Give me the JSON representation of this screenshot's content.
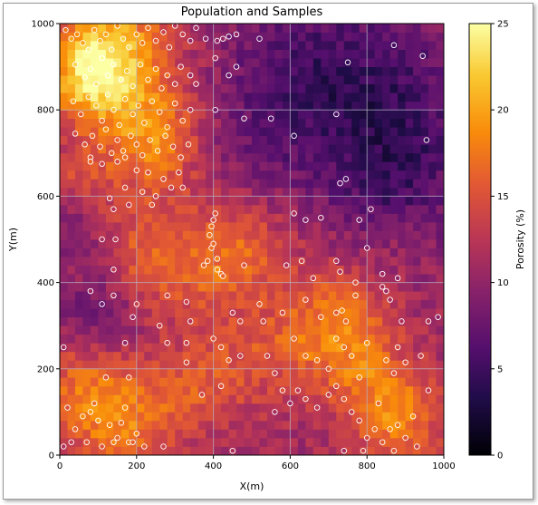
{
  "chart_data": {
    "type": "heatmap",
    "title": "Population and Samples",
    "xlabel": "X(m)",
    "ylabel": "Y(m)",
    "xlim": [
      0,
      1000
    ],
    "ylim": [
      0,
      1000
    ],
    "x_ticks": [
      0,
      200,
      400,
      600,
      800,
      1000
    ],
    "y_ticks": [
      0,
      200,
      400,
      600,
      800,
      1000
    ],
    "grid": true,
    "colormap": "inferno",
    "colorbar": {
      "label": "Porosity (%)",
      "range": [
        0,
        25
      ],
      "ticks": [
        0,
        5,
        10,
        15,
        20,
        25
      ]
    },
    "samples": [
      [
        15,
        985
      ],
      [
        30,
        965
      ],
      [
        45,
        975
      ],
      [
        60,
        955
      ],
      [
        75,
        940
      ],
      [
        90,
        985
      ],
      [
        105,
        960
      ],
      [
        120,
        975
      ],
      [
        135,
        940
      ],
      [
        150,
        995
      ],
      [
        165,
        965
      ],
      [
        180,
        945
      ],
      [
        200,
        975
      ],
      [
        215,
        955
      ],
      [
        230,
        990
      ],
      [
        250,
        960
      ],
      [
        270,
        980
      ],
      [
        285,
        945
      ],
      [
        300,
        995
      ],
      [
        320,
        975
      ],
      [
        340,
        960
      ],
      [
        355,
        990
      ],
      [
        380,
        965
      ],
      [
        410,
        960
      ],
      [
        425,
        965
      ],
      [
        440,
        970
      ],
      [
        460,
        975
      ],
      [
        520,
        965
      ],
      [
        40,
        905
      ],
      [
        65,
        875
      ],
      [
        80,
        895
      ],
      [
        95,
        860
      ],
      [
        110,
        920
      ],
      [
        125,
        880
      ],
      [
        140,
        905
      ],
      [
        160,
        870
      ],
      [
        175,
        890
      ],
      [
        190,
        855
      ],
      [
        210,
        905
      ],
      [
        230,
        870
      ],
      [
        250,
        895
      ],
      [
        265,
        850
      ],
      [
        280,
        880
      ],
      [
        300,
        860
      ],
      [
        315,
        900
      ],
      [
        340,
        880
      ],
      [
        355,
        860
      ],
      [
        405,
        920
      ],
      [
        440,
        880
      ],
      [
        460,
        900
      ],
      [
        35,
        820
      ],
      [
        55,
        790
      ],
      [
        75,
        830
      ],
      [
        95,
        810
      ],
      [
        110,
        775
      ],
      [
        125,
        835
      ],
      [
        140,
        800
      ],
      [
        155,
        765
      ],
      [
        170,
        825
      ],
      [
        190,
        790
      ],
      [
        205,
        810
      ],
      [
        220,
        770
      ],
      [
        240,
        820
      ],
      [
        260,
        795
      ],
      [
        280,
        760
      ],
      [
        300,
        815
      ],
      [
        320,
        775
      ],
      [
        340,
        800
      ],
      [
        405,
        800
      ],
      [
        480,
        780
      ],
      [
        550,
        780
      ],
      [
        720,
        790
      ],
      [
        40,
        745
      ],
      [
        65,
        720
      ],
      [
        85,
        740
      ],
      [
        105,
        715
      ],
      [
        120,
        755
      ],
      [
        135,
        700
      ],
      [
        150,
        730
      ],
      [
        165,
        705
      ],
      [
        185,
        740
      ],
      [
        200,
        720
      ],
      [
        215,
        695
      ],
      [
        235,
        730
      ],
      [
        255,
        705
      ],
      [
        275,
        740
      ],
      [
        295,
        715
      ],
      [
        315,
        690
      ],
      [
        335,
        720
      ],
      [
        80,
        690
      ],
      [
        80,
        680
      ],
      [
        110,
        675
      ],
      [
        150,
        680
      ],
      [
        170,
        690
      ],
      [
        200,
        660
      ],
      [
        230,
        655
      ],
      [
        170,
        620
      ],
      [
        215,
        610
      ],
      [
        250,
        600
      ],
      [
        270,
        640
      ],
      [
        290,
        620
      ],
      [
        310,
        655
      ],
      [
        320,
        620
      ],
      [
        130,
        595
      ],
      [
        140,
        570
      ],
      [
        180,
        580
      ],
      [
        240,
        580
      ],
      [
        390,
        510
      ],
      [
        395,
        530
      ],
      [
        400,
        545
      ],
      [
        405,
        560
      ],
      [
        730,
        630
      ],
      [
        745,
        640
      ],
      [
        610,
        740
      ],
      [
        750,
        910
      ],
      [
        870,
        950
      ],
      [
        945,
        925
      ],
      [
        955,
        730
      ],
      [
        610,
        560
      ],
      [
        640,
        545
      ],
      [
        680,
        550
      ],
      [
        780,
        545
      ],
      [
        810,
        570
      ],
      [
        590,
        440
      ],
      [
        630,
        450
      ],
      [
        660,
        410
      ],
      [
        720,
        450
      ],
      [
        730,
        425
      ],
      [
        770,
        400
      ],
      [
        800,
        480
      ],
      [
        840,
        420
      ],
      [
        880,
        410
      ],
      [
        110,
        500
      ],
      [
        145,
        500
      ],
      [
        140,
        430
      ],
      [
        375,
        440
      ],
      [
        385,
        450
      ],
      [
        395,
        480
      ],
      [
        400,
        490
      ],
      [
        410,
        455
      ],
      [
        410,
        430
      ],
      [
        420,
        420
      ],
      [
        425,
        415
      ],
      [
        480,
        440
      ],
      [
        80,
        380
      ],
      [
        110,
        350
      ],
      [
        140,
        370
      ],
      [
        200,
        350
      ],
      [
        190,
        320
      ],
      [
        280,
        370
      ],
      [
        330,
        355
      ],
      [
        340,
        310
      ],
      [
        450,
        330
      ],
      [
        470,
        310
      ],
      [
        520,
        350
      ],
      [
        530,
        310
      ],
      [
        580,
        330
      ],
      [
        640,
        360
      ],
      [
        680,
        320
      ],
      [
        720,
        330
      ],
      [
        735,
        335
      ],
      [
        745,
        310
      ],
      [
        770,
        370
      ],
      [
        840,
        390
      ],
      [
        850,
        380
      ],
      [
        860,
        360
      ],
      [
        890,
        310
      ],
      [
        960,
        310
      ],
      [
        985,
        320
      ],
      [
        10,
        250
      ],
      [
        180,
        180
      ],
      [
        170,
        260
      ],
      [
        260,
        300
      ],
      [
        280,
        260
      ],
      [
        330,
        260
      ],
      [
        400,
        270
      ],
      [
        420,
        250
      ],
      [
        440,
        220
      ],
      [
        470,
        230
      ],
      [
        540,
        230
      ],
      [
        560,
        190
      ],
      [
        580,
        150
      ],
      [
        610,
        270
      ],
      [
        640,
        230
      ],
      [
        670,
        220
      ],
      [
        700,
        200
      ],
      [
        720,
        270
      ],
      [
        740,
        250
      ],
      [
        760,
        230
      ],
      [
        780,
        180
      ],
      [
        800,
        260
      ],
      [
        850,
        220
      ],
      [
        870,
        190
      ],
      [
        880,
        250
      ],
      [
        900,
        215
      ],
      [
        940,
        230
      ],
      [
        20,
        110
      ],
      [
        40,
        60
      ],
      [
        60,
        90
      ],
      [
        80,
        100
      ],
      [
        90,
        120
      ],
      [
        100,
        80
      ],
      [
        120,
        180
      ],
      [
        130,
        70
      ],
      [
        150,
        40
      ],
      [
        160,
        75
      ],
      [
        170,
        110
      ],
      [
        180,
        30
      ],
      [
        200,
        50
      ],
      [
        270,
        20
      ],
      [
        330,
        215
      ],
      [
        370,
        140
      ],
      [
        420,
        160
      ],
      [
        450,
        10
      ],
      [
        560,
        100
      ],
      [
        600,
        120
      ],
      [
        620,
        150
      ],
      [
        640,
        130
      ],
      [
        670,
        110
      ],
      [
        700,
        140
      ],
      [
        720,
        160
      ],
      [
        740,
        130
      ],
      [
        760,
        100
      ],
      [
        780,
        80
      ],
      [
        800,
        40
      ],
      [
        820,
        60
      ],
      [
        840,
        30
      ],
      [
        860,
        60
      ],
      [
        880,
        70
      ],
      [
        900,
        40
      ],
      [
        920,
        90
      ],
      [
        740,
        10
      ],
      [
        790,
        10
      ],
      [
        830,
        120
      ],
      [
        870,
        10
      ],
      [
        930,
        20
      ],
      [
        960,
        150
      ],
      [
        10,
        20
      ],
      [
        30,
        30
      ],
      [
        70,
        30
      ],
      [
        110,
        20
      ],
      [
        140,
        30
      ],
      [
        190,
        30
      ],
      [
        220,
        20
      ]
    ]
  }
}
